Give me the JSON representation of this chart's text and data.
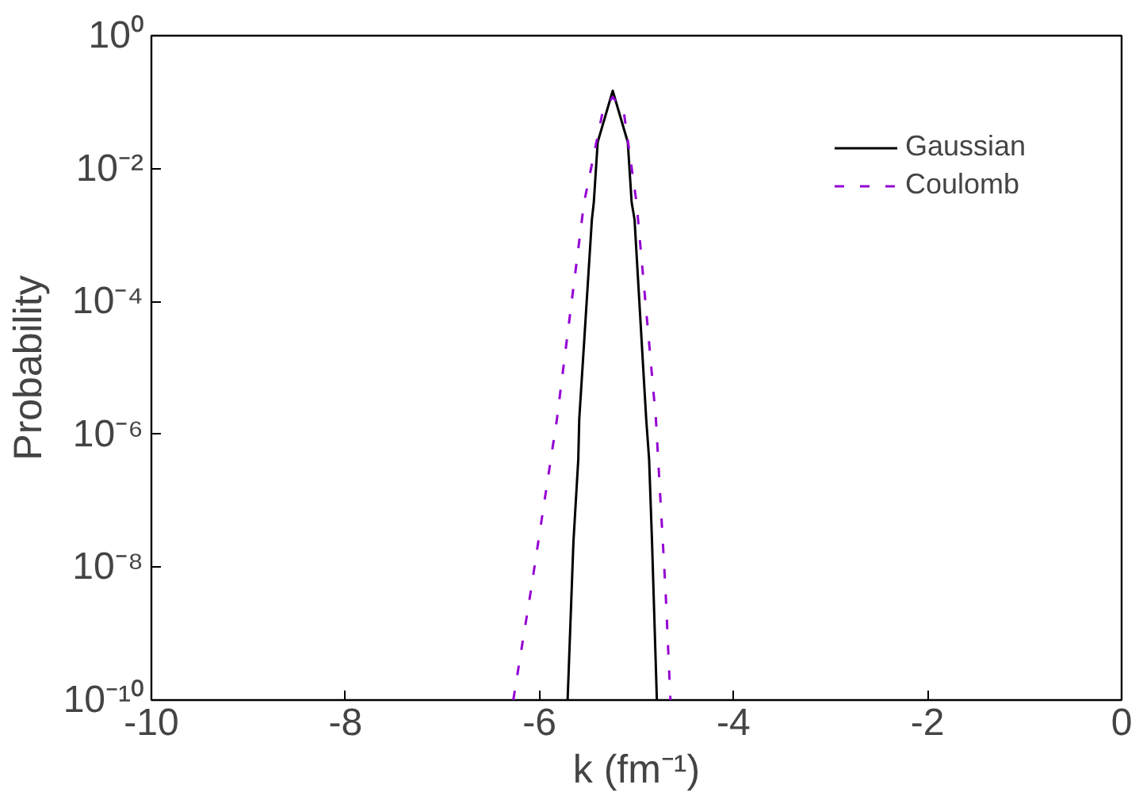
{
  "chart_data": {
    "type": "line",
    "xlabel": "k (fm⁻¹)",
    "ylabel": "Probability",
    "log": "y",
    "xlim": [
      -10,
      0
    ],
    "xticks": [
      -10,
      -8,
      -6,
      -4,
      -2,
      0
    ],
    "ylim": [
      1e-10,
      1
    ],
    "yticks": [
      {
        "value": 1e-10,
        "label": "10⁻¹⁰"
      },
      {
        "value": 1e-08,
        "label": "10⁻⁸"
      },
      {
        "value": 1e-06,
        "label": "10⁻⁶"
      },
      {
        "value": 0.0001,
        "label": "10⁻⁴"
      },
      {
        "value": 0.01,
        "label": "10⁻²"
      },
      {
        "value": 1,
        "label": "10⁰"
      }
    ],
    "grid": false,
    "legend": "top right",
    "series": [
      {
        "name": "Gaussian",
        "color": "#000000",
        "line_style": "solid",
        "x": [
          -5.71,
          -5.65,
          -5.6,
          -5.59,
          -5.46,
          -5.44,
          -5.4,
          -5.245,
          -5.09,
          -5.05,
          -5.02,
          -4.9,
          -4.87,
          -4.84,
          -4.79
        ],
        "values": [
          1e-10,
          2.4e-08,
          4.2e-07,
          1.7e-06,
          0.0017,
          0.0031,
          0.025,
          0.148,
          0.025,
          0.0031,
          0.0017,
          1.7e-06,
          4.2e-07,
          2.4e-08,
          1e-10
        ]
      },
      {
        "name": "Coulomb",
        "color": "#9400d3",
        "line_style": "dashed",
        "x": [
          -6.27,
          -6.09,
          -5.82,
          -5.54,
          -5.35,
          -5.245,
          -5.13,
          -5.0,
          -4.8,
          -4.7,
          -4.65
        ],
        "values": [
          1e-10,
          4.3e-09,
          1.7e-06,
          0.0031,
          0.07,
          0.12,
          0.07,
          0.0031,
          1.7e-06,
          4.3e-09,
          1e-10
        ]
      }
    ]
  }
}
